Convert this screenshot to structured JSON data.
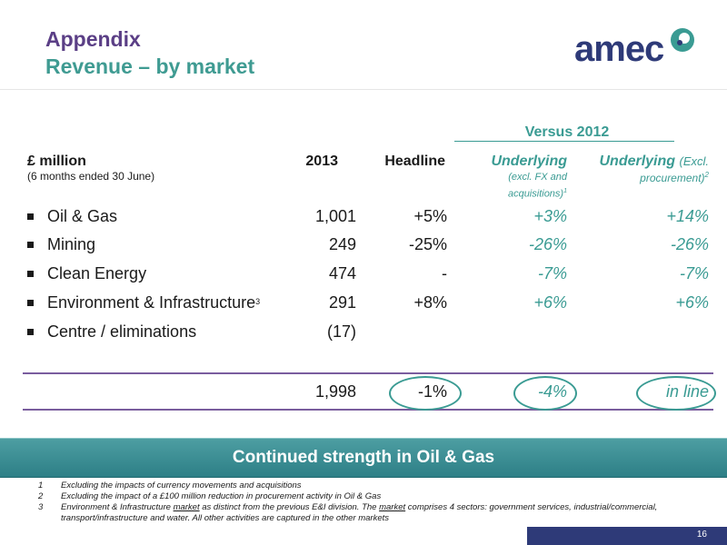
{
  "header": {
    "title_line1": "Appendix",
    "title_line2": "Revenue – by market",
    "logo_text": "amec"
  },
  "table": {
    "group_header": "Versus 2012",
    "columns": {
      "label_main": "£ million",
      "label_sub": "(6 months ended 30 June)",
      "year": "2013",
      "headline": "Headline",
      "underlying1": "Underlying",
      "underlying1_sub_a": "(excl. FX and",
      "underlying1_sub_b": "acquisitions)",
      "underlying1_fn": "1",
      "underlying2": "Underlying",
      "underlying2_excl": "(Excl.",
      "underlying2_sub": "procurement)",
      "underlying2_fn": "2"
    },
    "rows": [
      {
        "name": "Oil & Gas",
        "fn": "",
        "v2013": "1,001",
        "headline": "+5%",
        "u1": "+3%",
        "u2": "+14%"
      },
      {
        "name": "Mining",
        "fn": "",
        "v2013": "249",
        "headline": "-25%",
        "u1": "-26%",
        "u2": "-26%"
      },
      {
        "name": "Clean Energy",
        "fn": "",
        "v2013": "474",
        "headline": "-",
        "u1": "-7%",
        "u2": "-7%"
      },
      {
        "name": "Environment & Infrastructure",
        "fn": "3",
        "v2013": "291",
        "headline": "+8%",
        "u1": "+6%",
        "u2": "+6%"
      },
      {
        "name": "Centre / eliminations",
        "fn": "",
        "v2013": "(17)",
        "headline": "",
        "u1": "",
        "u2": ""
      }
    ],
    "total": {
      "v2013": "1,998",
      "headline": "-1%",
      "u1": "-4%",
      "u2": "in line"
    }
  },
  "banner": {
    "text": "Continued strength in Oil & Gas"
  },
  "footnotes": [
    {
      "num": "1",
      "text": "Excluding the impacts of currency movements and acquisitions"
    },
    {
      "num": "2",
      "text": "Excluding the impact of a £100 million reduction in procurement activity in Oil & Gas"
    },
    {
      "num": "3",
      "text_a": "Environment & Infrastructure ",
      "text_u1": "market",
      "text_b": " as distinct from the previous E&I division. The ",
      "text_u2": "market",
      "text_c": " comprises 4 sectors: government services, industrial/commercial, transport/infrastructure and water. All other activities are captured in the other markets"
    }
  ],
  "footer": {
    "page_number": "16"
  },
  "colors": {
    "title_purple": "#5b3f86",
    "teal": "#3a9b93",
    "navy": "#2e3a78"
  }
}
